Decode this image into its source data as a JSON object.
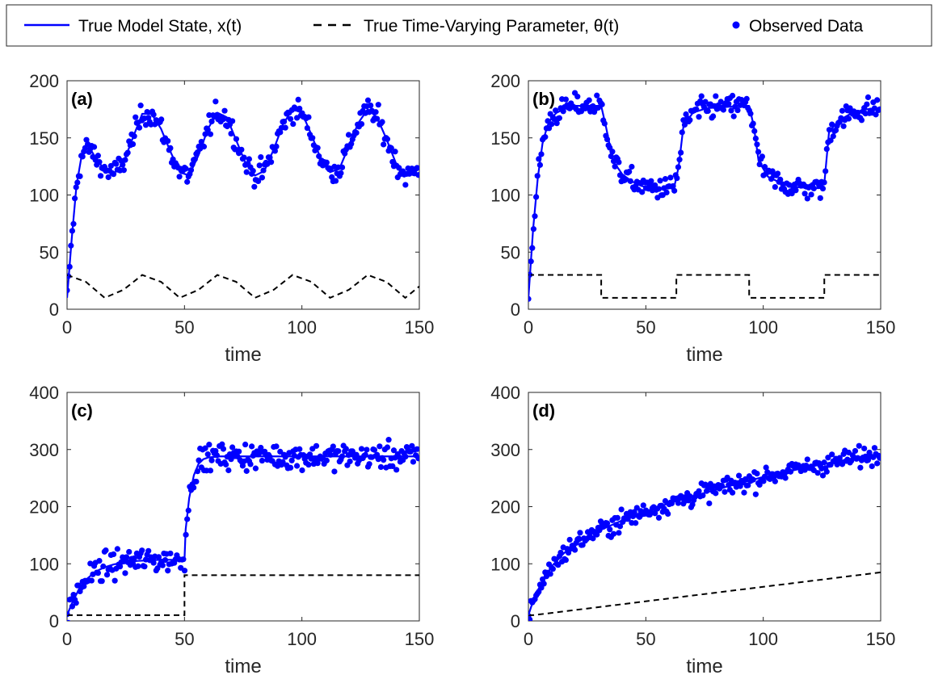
{
  "legend": {
    "position": "top",
    "entries": [
      {
        "label": "True Model State, x(t)",
        "style": "solid",
        "color": "#0000ff"
      },
      {
        "label": "True Time-Varying Parameter, θ(t)",
        "style": "dashed",
        "color": "#000000"
      },
      {
        "label": "Observed Data",
        "style": "dots",
        "color": "#0000ff"
      }
    ]
  },
  "colors": {
    "state": "#0000ff",
    "parameter": "#000000",
    "data": "#0000ff"
  },
  "chart_data": [
    {
      "panel": "(a)",
      "type": "line",
      "xlabel": "time",
      "ylabel": "",
      "xlim": [
        0,
        150
      ],
      "ylim": [
        0,
        200
      ],
      "xticks": [
        0,
        50,
        100,
        150
      ],
      "yticks": [
        0,
        50,
        100,
        150,
        200
      ],
      "state": {
        "x": [
          0,
          2,
          4,
          6,
          8,
          10,
          12,
          16,
          20,
          24,
          28,
          32,
          36,
          40,
          44,
          48,
          52,
          56,
          60,
          64,
          68,
          72,
          76,
          80,
          84,
          88,
          92,
          96,
          100,
          104,
          108,
          112,
          116,
          120,
          124,
          128,
          132,
          136,
          140,
          144,
          148,
          150
        ],
        "y": [
          10,
          62,
          108,
          132,
          141,
          140,
          133,
          122,
          119,
          128,
          150,
          171,
          171,
          158,
          138,
          120,
          117,
          135,
          158,
          172,
          168,
          148,
          128,
          117,
          121,
          140,
          162,
          175,
          172,
          153,
          132,
          120,
          123,
          143,
          163,
          175,
          168,
          149,
          128,
          117,
          120,
          124
        ]
      },
      "parameter": {
        "x": [
          0,
          8,
          16,
          24,
          32,
          40,
          48,
          56,
          64,
          72,
          80,
          88,
          96,
          104,
          112,
          120,
          128,
          136,
          144,
          150
        ],
        "y": [
          30,
          24,
          10,
          17,
          30,
          24,
          10,
          17,
          30,
          24,
          10,
          17,
          30,
          24,
          10,
          17,
          30,
          24,
          10,
          20
        ]
      },
      "observed_trend": "state + noise (±8)"
    },
    {
      "panel": "(b)",
      "type": "line",
      "xlabel": "time",
      "ylabel": "",
      "xlim": [
        0,
        150
      ],
      "ylim": [
        0,
        200
      ],
      "xticks": [
        0,
        50,
        100,
        150
      ],
      "yticks": [
        0,
        50,
        100,
        150,
        200
      ],
      "state": {
        "x": [
          0,
          2,
          4,
          6,
          8,
          10,
          12,
          16,
          20,
          24,
          28,
          31,
          33,
          36,
          40,
          44,
          48,
          52,
          56,
          60,
          62,
          64,
          66,
          70,
          76,
          84,
          90,
          94,
          96,
          98,
          102,
          108,
          114,
          120,
          124,
          126,
          128,
          132,
          138,
          144,
          150
        ],
        "y": [
          10,
          70,
          115,
          145,
          160,
          168,
          172,
          176,
          178,
          178,
          178,
          178,
          160,
          130,
          118,
          112,
          108,
          106,
          106,
          106,
          106,
          125,
          160,
          172,
          176,
          177,
          178,
          178,
          160,
          130,
          116,
          110,
          107,
          106,
          106,
          110,
          155,
          165,
          172,
          175,
          176
        ]
      },
      "parameter": {
        "x": [
          0,
          31,
          31,
          63,
          63,
          94,
          94,
          126,
          126,
          150
        ],
        "y": [
          30,
          30,
          10,
          10,
          30,
          30,
          10,
          10,
          30,
          30
        ]
      },
      "observed_trend": "state + noise (±8)"
    },
    {
      "panel": "(c)",
      "type": "line",
      "xlabel": "time",
      "ylabel": "",
      "xlim": [
        0,
        150
      ],
      "ylim": [
        0,
        400
      ],
      "xticks": [
        0,
        50,
        100,
        150
      ],
      "yticks": [
        0,
        100,
        200,
        300,
        400
      ],
      "state": {
        "x": [
          0,
          2,
          5,
          8,
          12,
          16,
          20,
          25,
          30,
          35,
          40,
          45,
          50,
          50.5,
          52,
          54,
          56,
          58,
          60,
          65,
          70,
          80,
          100,
          120,
          150
        ],
        "y": [
          10,
          30,
          55,
          72,
          86,
          94,
          99,
          103,
          105,
          106,
          107,
          107,
          107,
          160,
          215,
          255,
          275,
          283,
          286,
          288,
          288,
          288,
          288,
          288,
          288
        ]
      },
      "parameter": {
        "x": [
          0,
          50,
          50,
          150
        ],
        "y": [
          10,
          10,
          80,
          80
        ]
      },
      "observed_trend": "state + noise (±18)"
    },
    {
      "panel": "(d)",
      "type": "line",
      "xlabel": "time",
      "ylabel": "",
      "xlim": [
        0,
        150
      ],
      "ylim": [
        0,
        400
      ],
      "xticks": [
        0,
        50,
        100,
        150
      ],
      "yticks": [
        0,
        100,
        200,
        300,
        400
      ],
      "state": {
        "x": [
          0,
          2,
          5,
          10,
          15,
          20,
          25,
          30,
          40,
          50,
          60,
          70,
          80,
          90,
          100,
          110,
          120,
          130,
          140,
          150
        ],
        "y": [
          10,
          35,
          62,
          96,
          118,
          135,
          148,
          158,
          176,
          192,
          206,
          218,
          230,
          241,
          252,
          261,
          270,
          278,
          286,
          292
        ]
      },
      "parameter": {
        "x": [
          0,
          2,
          150
        ],
        "y": [
          10,
          10,
          85
        ]
      },
      "observed_trend": "state + noise (±12)"
    }
  ]
}
